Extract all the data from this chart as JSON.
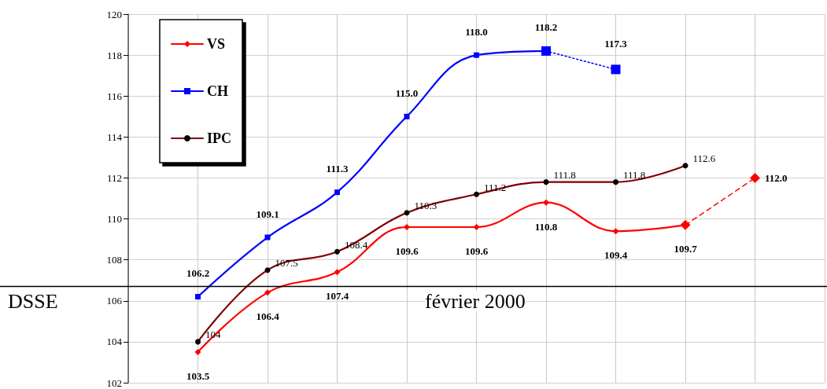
{
  "chart_data": {
    "type": "line",
    "categories": [
      null,
      null,
      null,
      null,
      null,
      null,
      null,
      null,
      null,
      null,
      null
    ],
    "ylim": [
      102,
      120
    ],
    "yticks": [
      102,
      104,
      106,
      108,
      110,
      112,
      114,
      116,
      118,
      120
    ],
    "grid": true,
    "legend": "top left",
    "ref_lines": [
      {
        "axis": "y",
        "value": 106.7,
        "color": "#000000"
      }
    ],
    "annotations": [
      "DSSE",
      "février 2000"
    ],
    "series": [
      {
        "name": "VS",
        "color": "#ff0000",
        "marker": "diamond",
        "line_style": "solid",
        "values": [
          null,
          103.5,
          106.4,
          107.4,
          109.6,
          109.6,
          110.8,
          109.4,
          109.7,
          null,
          null
        ],
        "value_labels": [
          null,
          "103.5",
          "106.4",
          "107.4",
          "109.6",
          "109.6",
          "110.8",
          "109.4",
          "109.7",
          null,
          null
        ]
      },
      {
        "name": "CH",
        "color": "#0000ff",
        "marker": "square",
        "line_style": "solid",
        "values": [
          null,
          106.2,
          109.1,
          111.3,
          115.0,
          118.0,
          118.2,
          null,
          null,
          null,
          null
        ],
        "value_labels": [
          null,
          "106.2",
          "109.1",
          "111.3",
          "115.0",
          "118.0",
          "118.2",
          null,
          null,
          null,
          null
        ]
      },
      {
        "name": "IPC",
        "color": "#800000",
        "marker": "circle",
        "line_style": "solid",
        "values": [
          null,
          104,
          107.5,
          108.4,
          110.3,
          111.2,
          111.8,
          111.8,
          112.6,
          null,
          null
        ],
        "value_labels": [
          null,
          "104",
          "107.5",
          "108.4",
          "110.3",
          "111.2",
          "111.8",
          "111.8",
          "112.6",
          null,
          null
        ]
      },
      {
        "color": "#ff0000",
        "marker": "diamond",
        "line_style": "dashed",
        "values": [
          null,
          null,
          null,
          null,
          null,
          null,
          null,
          null,
          109.7,
          112.0,
          null
        ],
        "value_labels": [
          null,
          null,
          null,
          null,
          null,
          null,
          null,
          null,
          null,
          "112.0",
          null
        ]
      },
      {
        "color": "#0000ff",
        "marker": "square",
        "line_style": "dotted",
        "values": [
          null,
          null,
          null,
          null,
          null,
          null,
          118.2,
          117.3,
          null,
          null,
          null
        ],
        "value_labels": [
          null,
          null,
          null,
          null,
          null,
          null,
          null,
          "117.3",
          null,
          null,
          null
        ]
      }
    ]
  }
}
